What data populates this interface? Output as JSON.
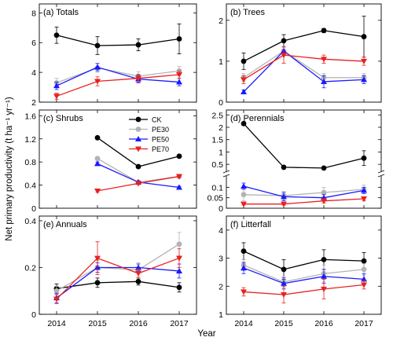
{
  "figure": {
    "ylabel": "Net primary productivity (t ha⁻¹ yr⁻¹)",
    "xlabel": "Year"
  },
  "colors": {
    "CK": "#000000",
    "PE30": "#b3b3b3",
    "PE50": "#1a1aff",
    "PE70": "#e8211f"
  },
  "legend": [
    "CK",
    "PE30",
    "PE50",
    "PE70"
  ],
  "chart_data": [
    {
      "title": "(a) Totals",
      "type": "line",
      "x": [
        2014,
        2015,
        2016,
        2017
      ],
      "xticks": [
        "2014",
        "2015",
        "2016",
        "2017"
      ],
      "xtick_labels_shown": false,
      "ylim": [
        2,
        8.6
      ],
      "yticks": [
        2,
        4,
        6,
        8
      ],
      "series": [
        {
          "name": "CK",
          "values": [
            6.5,
            5.8,
            5.85,
            6.25
          ],
          "err": [
            0.55,
            0.6,
            0.4,
            1.0
          ]
        },
        {
          "name": "PE30",
          "values": [
            3.3,
            4.3,
            3.75,
            4.1
          ],
          "err": [
            0.3,
            0.3,
            0.3,
            0.3
          ]
        },
        {
          "name": "PE50",
          "values": [
            3.1,
            4.35,
            3.55,
            3.35
          ],
          "err": [
            0.25,
            0.25,
            0.25,
            0.25
          ]
        },
        {
          "name": "PE70",
          "values": [
            2.4,
            3.4,
            3.6,
            3.85
          ],
          "err": [
            0.2,
            0.3,
            0.25,
            0.25
          ]
        }
      ]
    },
    {
      "title": "(b) Trees",
      "type": "line",
      "x": [
        2014,
        2015,
        2016,
        2017
      ],
      "xticks": [
        "2014",
        "2015",
        "2016",
        "2017"
      ],
      "xtick_labels_shown": false,
      "ylim": [
        0,
        2.4
      ],
      "yticks": [
        0,
        1,
        2
      ],
      "series": [
        {
          "name": "CK",
          "values": [
            1.0,
            1.5,
            1.75,
            1.6
          ],
          "err": [
            0.2,
            0.15,
            0.05,
            0.5
          ]
        },
        {
          "name": "PE30",
          "values": [
            0.6,
            1.25,
            0.6,
            0.6
          ],
          "err": [
            0.1,
            0.1,
            0.1,
            0.1
          ]
        },
        {
          "name": "PE50",
          "values": [
            0.25,
            1.25,
            0.5,
            0.55
          ],
          "err": [
            0.05,
            0.1,
            0.15,
            0.1
          ]
        },
        {
          "name": "PE70",
          "values": [
            0.55,
            1.15,
            1.05,
            1.0
          ],
          "err": [
            0.1,
            0.2,
            0.1,
            0.1
          ]
        }
      ]
    },
    {
      "title": "(c) Shrubs",
      "type": "line",
      "x": [
        2014,
        2015,
        2016,
        2017
      ],
      "xticks": [
        "2014",
        "2015",
        "2016",
        "2017"
      ],
      "xtick_labels_shown": false,
      "ylim": [
        0,
        1.7
      ],
      "yticks": [
        0.0,
        0.4,
        0.8,
        1.2,
        1.6
      ],
      "series": [
        {
          "name": "CK",
          "values": [
            null,
            1.22,
            0.72,
            0.9
          ],
          "err": [
            null,
            0.02,
            0.02,
            0.02
          ]
        },
        {
          "name": "PE30",
          "values": [
            null,
            0.86,
            0.45,
            0.55
          ],
          "err": [
            null,
            0.03,
            0.02,
            0.02
          ]
        },
        {
          "name": "PE50",
          "values": [
            null,
            0.77,
            0.45,
            0.36
          ],
          "err": [
            null,
            0.03,
            0.02,
            0.02
          ]
        },
        {
          "name": "PE70",
          "values": [
            null,
            0.3,
            0.43,
            0.55
          ],
          "err": [
            null,
            0.02,
            0.02,
            0.02
          ]
        }
      ],
      "legend": "inside-top"
    },
    {
      "title": "(d) Perennials",
      "type": "line",
      "x": [
        2014,
        2015,
        2016,
        2017
      ],
      "xticks": [
        "2014",
        "2015",
        "2016",
        "2017"
      ],
      "xtick_labels_shown": false,
      "broken_axis": true,
      "ylim_low": [
        0,
        0.15
      ],
      "yticks_low": [
        0.0,
        0.05,
        0.1
      ],
      "ylim_high": [
        0.25,
        2.7
      ],
      "yticks_high": [
        0.5,
        1.0,
        1.5,
        2.0,
        2.5
      ],
      "series": [
        {
          "name": "CK",
          "values": [
            2.15,
            0.38,
            0.35,
            0.75
          ],
          "err": [
            0.05,
            0.02,
            0.02,
            0.3
          ]
        },
        {
          "name": "PE30",
          "values": [
            0.065,
            0.06,
            0.075,
            0.09
          ],
          "err": [
            0.03,
            0.02,
            0.025,
            0.02
          ]
        },
        {
          "name": "PE50",
          "values": [
            0.105,
            0.055,
            0.05,
            0.085
          ],
          "err": [
            0.015,
            0.02,
            0.015,
            0.015
          ]
        },
        {
          "name": "PE70",
          "values": [
            0.02,
            0.02,
            0.035,
            0.045
          ],
          "err": [
            0.005,
            0.005,
            0.01,
            0.01
          ]
        }
      ]
    },
    {
      "title": "(e) Annuals",
      "type": "line",
      "x": [
        2014,
        2015,
        2016,
        2017
      ],
      "xticks": [
        "2014",
        "2015",
        "2016",
        "2017"
      ],
      "xtick_labels_shown": true,
      "ylim": [
        0,
        0.42
      ],
      "yticks": [
        0.0,
        0.2,
        0.4
      ],
      "series": [
        {
          "name": "CK",
          "values": [
            0.11,
            0.135,
            0.14,
            0.115
          ],
          "err": [
            0.02,
            0.02,
            0.015,
            0.02
          ]
        },
        {
          "name": "PE30",
          "values": [
            0.1,
            0.2,
            0.19,
            0.3
          ],
          "err": [
            0.02,
            0.03,
            0.03,
            0.05
          ]
        },
        {
          "name": "PE50",
          "values": [
            0.07,
            0.2,
            0.2,
            0.185
          ],
          "err": [
            0.02,
            0.02,
            0.015,
            0.03
          ]
        },
        {
          "name": "PE70",
          "values": [
            0.065,
            0.24,
            0.175,
            0.24
          ],
          "err": [
            0.02,
            0.07,
            0.02,
            0.04
          ]
        }
      ]
    },
    {
      "title": "(f) Litterfall",
      "type": "line",
      "x": [
        2014,
        2015,
        2016,
        2017
      ],
      "xticks": [
        "2014",
        "2015",
        "2016",
        "2017"
      ],
      "xtick_labels_shown": true,
      "ylim": [
        1,
        4.5
      ],
      "yticks": [
        1,
        2,
        3,
        4
      ],
      "series": [
        {
          "name": "CK",
          "values": [
            3.25,
            2.6,
            2.95,
            2.9
          ],
          "err": [
            0.3,
            0.35,
            0.35,
            0.3
          ]
        },
        {
          "name": "PE30",
          "values": [
            2.75,
            2.15,
            2.45,
            2.6
          ],
          "err": [
            0.2,
            0.2,
            0.3,
            0.2
          ]
        },
        {
          "name": "PE50",
          "values": [
            2.65,
            2.1,
            2.35,
            2.25
          ],
          "err": [
            0.2,
            0.2,
            0.25,
            0.2
          ]
        },
        {
          "name": "PE70",
          "values": [
            1.8,
            1.7,
            1.9,
            2.05
          ],
          "err": [
            0.15,
            0.3,
            0.35,
            0.15
          ]
        }
      ]
    }
  ]
}
